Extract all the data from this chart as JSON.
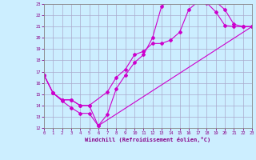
{
  "xlabel": "Windchill (Refroidissement éolien,°C)",
  "ylabel": "",
  "xlim": [
    0,
    23
  ],
  "ylim": [
    12,
    23
  ],
  "xticks": [
    0,
    1,
    2,
    3,
    4,
    5,
    6,
    7,
    8,
    9,
    10,
    11,
    12,
    13,
    14,
    15,
    16,
    17,
    18,
    19,
    20,
    21,
    22,
    23
  ],
  "yticks": [
    12,
    13,
    14,
    15,
    16,
    17,
    18,
    19,
    20,
    21,
    22,
    23
  ],
  "bg_color": "#cceeff",
  "grid_color": "#aaaacc",
  "line_color": "#cc00cc",
  "line1_x": [
    0,
    1,
    2,
    3,
    4,
    5,
    6,
    7,
    8,
    9,
    10,
    11,
    12,
    13,
    14,
    15,
    16,
    17,
    18,
    19,
    20,
    21,
    22,
    23
  ],
  "line1_y": [
    16.7,
    15.1,
    14.4,
    13.8,
    13.3,
    13.3,
    12.2,
    13.2,
    15.5,
    16.7,
    17.8,
    18.5,
    20.0,
    22.8,
    23.4,
    23.3,
    23.2,
    23.2,
    23.1,
    22.3,
    21.1,
    21.0,
    21.0,
    21.0
  ],
  "line2_x": [
    0,
    1,
    2,
    3,
    4,
    5,
    7,
    8,
    9,
    10,
    11,
    12,
    13,
    14,
    15,
    16,
    17,
    18,
    19,
    20,
    21,
    22,
    23
  ],
  "line2_y": [
    16.7,
    15.1,
    14.5,
    14.5,
    14.0,
    14.0,
    15.2,
    16.5,
    17.2,
    18.5,
    18.8,
    19.5,
    19.5,
    19.8,
    20.5,
    22.5,
    23.2,
    23.2,
    23.2,
    22.5,
    21.2,
    21.0,
    21.0
  ],
  "line3_x": [
    0,
    1,
    2,
    3,
    4,
    5,
    6,
    23
  ],
  "line3_y": [
    16.7,
    15.1,
    14.5,
    14.5,
    14.0,
    14.0,
    12.2,
    21.0
  ]
}
